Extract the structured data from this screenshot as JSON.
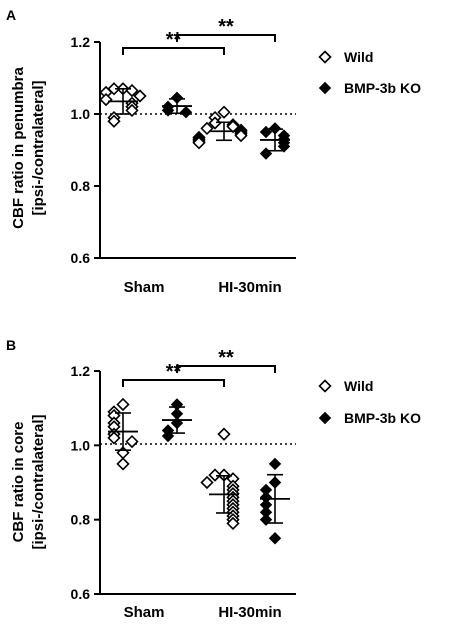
{
  "chart_data": [
    {
      "type": "scatter",
      "panel_label": "A",
      "ylabel_line1": "CBF ratio in penumbra",
      "ylabel_line2": "[ipsi-/contralateral]",
      "ylim": [
        0.6,
        1.2
      ],
      "yticks": [
        "0.6",
        "0.8",
        "1.0",
        "1.2"
      ],
      "reference_line": 1.0,
      "categories": [
        "Sham",
        "HI-30min"
      ],
      "series": [
        {
          "name": "Wild",
          "marker": "open-diamond",
          "groups": [
            {
              "category": "Sham",
              "mean": 1.035,
              "sd": 0.035,
              "values": [
                1.07,
                1.07,
                1.065,
                1.06,
                1.05,
                1.04,
                1.03,
                1.02,
                1.01,
                0.99,
                0.98
              ]
            },
            {
              "category": "HI-30min",
              "mean": 0.952,
              "sd": 0.025,
              "values": [
                1.005,
                0.99,
                0.975,
                0.97,
                0.965,
                0.96,
                0.955,
                0.95,
                0.945,
                0.94,
                0.935,
                0.93,
                0.925,
                0.92
              ]
            }
          ]
        },
        {
          "name": "BMP-3b KO",
          "marker": "filled-diamond",
          "groups": [
            {
              "category": "Sham",
              "mean": 1.022,
              "sd": 0.02,
              "values": [
                1.045,
                1.02,
                1.01,
                1.005
              ]
            },
            {
              "category": "HI-30min",
              "mean": 0.928,
              "sd": 0.03,
              "values": [
                0.96,
                0.95,
                0.94,
                0.93,
                0.92,
                0.91,
                0.89
              ]
            }
          ]
        }
      ],
      "significance": [
        {
          "label": "**",
          "from": "Sham Wild",
          "to": "HI-30min Wild"
        },
        {
          "label": "**",
          "from": "Sham BMP-3b KO",
          "to": "HI-30min BMP-3b KO"
        }
      ],
      "legend_placement": "right"
    },
    {
      "type": "scatter",
      "panel_label": "B",
      "ylabel_line1": "CBF ratio in core",
      "ylabel_line2": "[ipsi-/contralateral]",
      "ylim": [
        0.6,
        1.2
      ],
      "yticks": [
        "0.6",
        "0.8",
        "1.0",
        "1.2"
      ],
      "reference_line": 1.0,
      "categories": [
        "Sham",
        "HI-30min"
      ],
      "series": [
        {
          "name": "Wild",
          "marker": "open-diamond",
          "groups": [
            {
              "category": "Sham",
              "mean": 1.037,
              "sd": 0.05,
              "values": [
                1.11,
                1.09,
                1.08,
                1.06,
                1.05,
                1.03,
                1.02,
                1.01,
                0.98,
                0.95
              ]
            },
            {
              "category": "HI-30min",
              "mean": 0.868,
              "sd": 0.05,
              "values": [
                1.03,
                0.92,
                0.92,
                0.91,
                0.9,
                0.89,
                0.88,
                0.87,
                0.86,
                0.85,
                0.84,
                0.83,
                0.82,
                0.81,
                0.8,
                0.79
              ]
            }
          ]
        },
        {
          "name": "BMP-3b KO",
          "marker": "filled-diamond",
          "groups": [
            {
              "category": "Sham",
              "mean": 1.068,
              "sd": 0.035,
              "values": [
                1.11,
                1.085,
                1.06,
                1.04,
                1.025
              ]
            },
            {
              "category": "HI-30min",
              "mean": 0.856,
              "sd": 0.065,
              "values": [
                0.95,
                0.9,
                0.88,
                0.86,
                0.84,
                0.82,
                0.8,
                0.75
              ]
            }
          ]
        }
      ],
      "significance": [
        {
          "label": "**",
          "from": "Sham Wild",
          "to": "HI-30min Wild"
        },
        {
          "label": "**",
          "from": "Sham BMP-3b KO",
          "to": "HI-30min BMP-3b KO"
        }
      ],
      "legend_placement": "right"
    }
  ]
}
